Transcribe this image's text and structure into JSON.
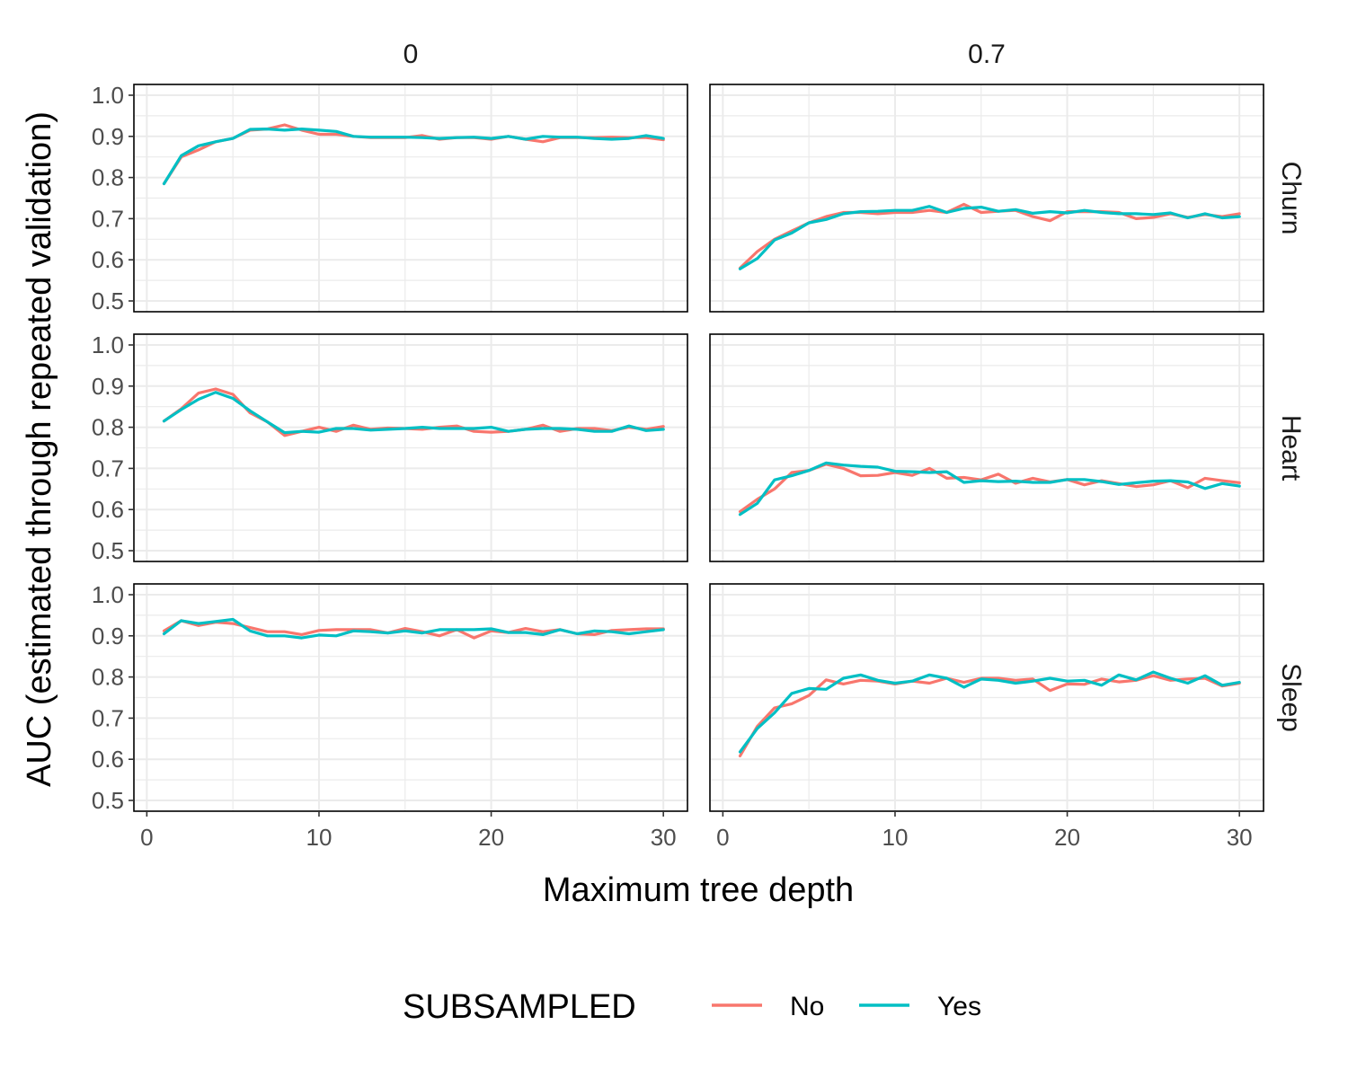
{
  "chart_data": {
    "type": "line",
    "facet_columns": [
      "0",
      "0.7"
    ],
    "facet_rows": [
      "Churn",
      "Heart",
      "Sleep"
    ],
    "xlabel": "Maximum tree depth",
    "ylabel": "AUC (estimated through repeated validation)",
    "xlim": [
      0,
      30
    ],
    "ylim": [
      0.5,
      1.0
    ],
    "x_ticks": [
      "0",
      "10",
      "20",
      "30"
    ],
    "y_ticks": [
      "0.5",
      "0.6",
      "0.7",
      "0.8",
      "0.9",
      "1.0"
    ],
    "grid": true,
    "legend": {
      "title": "SUBSAMPLED",
      "position": "bottom",
      "entries": [
        {
          "label": "No",
          "color": "#F8766D"
        },
        {
          "label": "Yes",
          "color": "#00BFC4"
        }
      ]
    },
    "x": [
      1,
      2,
      3,
      4,
      5,
      6,
      7,
      8,
      9,
      10,
      11,
      12,
      13,
      14,
      15,
      16,
      17,
      18,
      19,
      20,
      21,
      22,
      23,
      24,
      25,
      26,
      27,
      28,
      29,
      30
    ],
    "panels": [
      {
        "row": "Churn",
        "col": "0",
        "series": [
          {
            "name": "No",
            "values": [
              0.785,
              0.85,
              0.867,
              0.887,
              0.895,
              0.915,
              0.918,
              0.928,
              0.915,
              0.905,
              0.905,
              0.9,
              0.897,
              0.897,
              0.897,
              0.902,
              0.893,
              0.897,
              0.897,
              0.893,
              0.9,
              0.893,
              0.887,
              0.897,
              0.897,
              0.897,
              0.898,
              0.897,
              0.897,
              0.892
            ]
          },
          {
            "name": "Yes",
            "values": [
              0.785,
              0.853,
              0.877,
              0.887,
              0.895,
              0.917,
              0.918,
              0.915,
              0.918,
              0.915,
              0.912,
              0.9,
              0.898,
              0.898,
              0.898,
              0.897,
              0.895,
              0.897,
              0.898,
              0.895,
              0.9,
              0.893,
              0.9,
              0.898,
              0.898,
              0.895,
              0.893,
              0.895,
              0.902,
              0.895
            ]
          }
        ]
      },
      {
        "row": "Churn",
        "col": "0.7",
        "series": [
          {
            "name": "No",
            "values": [
              0.58,
              0.62,
              0.65,
              0.67,
              0.69,
              0.705,
              0.715,
              0.715,
              0.712,
              0.715,
              0.715,
              0.72,
              0.715,
              0.735,
              0.715,
              0.718,
              0.72,
              0.705,
              0.695,
              0.717,
              0.717,
              0.717,
              0.715,
              0.7,
              0.703,
              0.712,
              0.703,
              0.71,
              0.705,
              0.712
            ]
          },
          {
            "name": "Yes",
            "values": [
              0.578,
              0.603,
              0.648,
              0.665,
              0.69,
              0.698,
              0.712,
              0.717,
              0.718,
              0.72,
              0.72,
              0.73,
              0.715,
              0.725,
              0.728,
              0.718,
              0.722,
              0.713,
              0.717,
              0.714,
              0.72,
              0.715,
              0.712,
              0.712,
              0.71,
              0.714,
              0.702,
              0.712,
              0.702,
              0.705
            ]
          }
        ]
      },
      {
        "row": "Heart",
        "col": "0",
        "series": [
          {
            "name": "No",
            "values": [
              0.815,
              0.845,
              0.883,
              0.893,
              0.88,
              0.835,
              0.813,
              0.78,
              0.79,
              0.8,
              0.79,
              0.805,
              0.795,
              0.798,
              0.797,
              0.795,
              0.8,
              0.803,
              0.79,
              0.788,
              0.79,
              0.795,
              0.805,
              0.79,
              0.797,
              0.797,
              0.792,
              0.8,
              0.795,
              0.802
            ]
          },
          {
            "name": "Yes",
            "values": [
              0.815,
              0.843,
              0.868,
              0.885,
              0.87,
              0.84,
              0.813,
              0.787,
              0.79,
              0.788,
              0.797,
              0.797,
              0.793,
              0.795,
              0.797,
              0.8,
              0.797,
              0.797,
              0.797,
              0.8,
              0.79,
              0.795,
              0.797,
              0.797,
              0.795,
              0.79,
              0.79,
              0.803,
              0.792,
              0.795
            ]
          }
        ]
      },
      {
        "row": "Heart",
        "col": "0.7",
        "series": [
          {
            "name": "No",
            "values": [
              0.595,
              0.625,
              0.65,
              0.69,
              0.695,
              0.71,
              0.7,
              0.682,
              0.683,
              0.69,
              0.683,
              0.7,
              0.676,
              0.678,
              0.672,
              0.686,
              0.664,
              0.676,
              0.667,
              0.673,
              0.66,
              0.67,
              0.663,
              0.656,
              0.66,
              0.67,
              0.653,
              0.676,
              0.67,
              0.665
            ]
          },
          {
            "name": "Yes",
            "values": [
              0.588,
              0.615,
              0.672,
              0.682,
              0.695,
              0.713,
              0.708,
              0.705,
              0.703,
              0.693,
              0.692,
              0.69,
              0.692,
              0.666,
              0.67,
              0.668,
              0.669,
              0.666,
              0.666,
              0.673,
              0.673,
              0.668,
              0.661,
              0.665,
              0.669,
              0.67,
              0.667,
              0.651,
              0.663,
              0.657
            ]
          }
        ]
      },
      {
        "row": "Sleep",
        "col": "0",
        "series": [
          {
            "name": "No",
            "values": [
              0.912,
              0.937,
              0.925,
              0.933,
              0.93,
              0.92,
              0.91,
              0.91,
              0.903,
              0.913,
              0.915,
              0.915,
              0.915,
              0.907,
              0.918,
              0.91,
              0.9,
              0.915,
              0.895,
              0.912,
              0.908,
              0.918,
              0.91,
              0.915,
              0.905,
              0.903,
              0.913,
              0.915,
              0.917,
              0.917
            ]
          },
          {
            "name": "Yes",
            "values": [
              0.905,
              0.937,
              0.93,
              0.935,
              0.94,
              0.912,
              0.9,
              0.9,
              0.895,
              0.902,
              0.9,
              0.912,
              0.91,
              0.907,
              0.912,
              0.907,
              0.915,
              0.915,
              0.915,
              0.917,
              0.908,
              0.908,
              0.903,
              0.915,
              0.905,
              0.912,
              0.91,
              0.905,
              0.91,
              0.915
            ]
          }
        ]
      },
      {
        "row": "Sleep",
        "col": "0.7",
        "series": [
          {
            "name": "No",
            "values": [
              0.608,
              0.68,
              0.725,
              0.735,
              0.755,
              0.793,
              0.783,
              0.792,
              0.79,
              0.783,
              0.79,
              0.785,
              0.797,
              0.787,
              0.797,
              0.797,
              0.792,
              0.795,
              0.767,
              0.783,
              0.782,
              0.795,
              0.788,
              0.792,
              0.803,
              0.792,
              0.795,
              0.797,
              0.778,
              0.785
            ]
          },
          {
            "name": "Yes",
            "values": [
              0.618,
              0.675,
              0.713,
              0.76,
              0.772,
              0.77,
              0.797,
              0.805,
              0.792,
              0.785,
              0.79,
              0.805,
              0.797,
              0.775,
              0.795,
              0.792,
              0.785,
              0.79,
              0.797,
              0.79,
              0.792,
              0.78,
              0.805,
              0.793,
              0.812,
              0.797,
              0.785,
              0.803,
              0.78,
              0.787
            ]
          }
        ]
      }
    ]
  }
}
